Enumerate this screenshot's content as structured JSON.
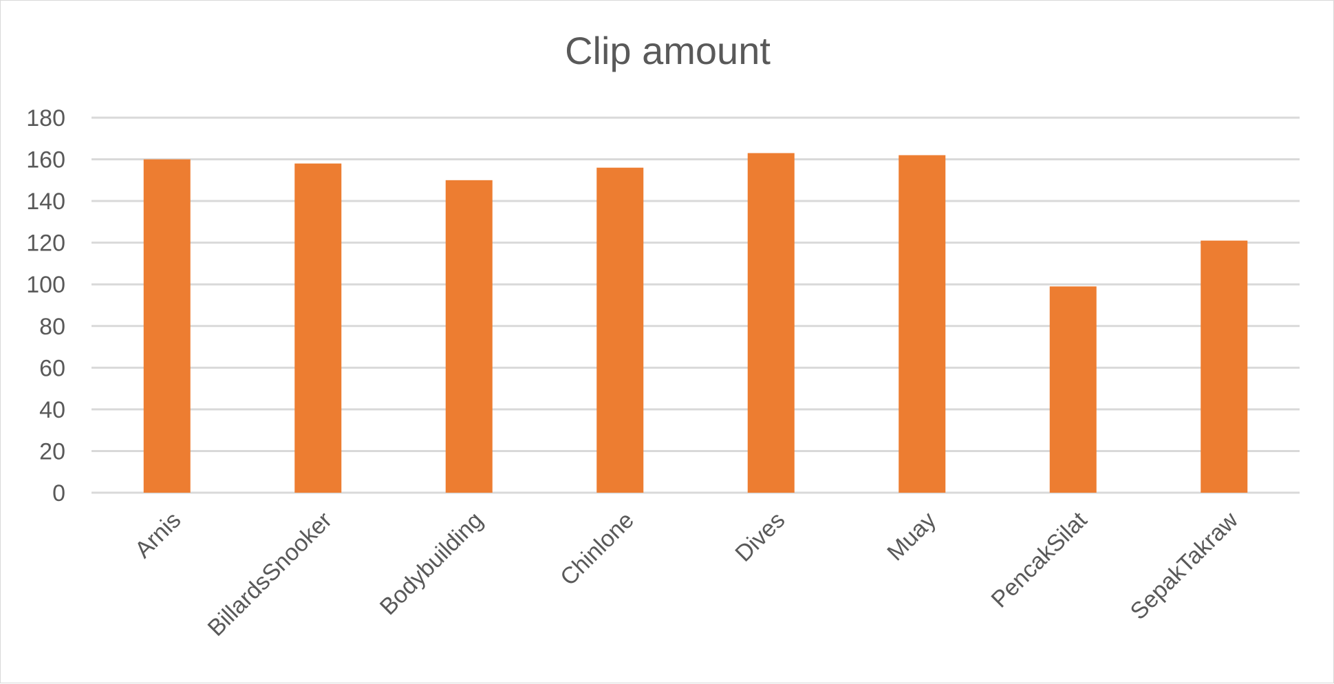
{
  "chart_data": {
    "type": "bar",
    "title": "Clip amount",
    "xlabel": "",
    "ylabel": "",
    "categories": [
      "Arnis",
      "BillardsSnooker",
      "Bodybuilding",
      "Chinlone",
      "Dives",
      "Muay",
      "PencakSilat",
      "SepakTakraw"
    ],
    "values": [
      160,
      158,
      150,
      156,
      163,
      162,
      99,
      121
    ],
    "ylim": [
      0,
      180
    ],
    "yticks": [
      0,
      20,
      40,
      60,
      80,
      100,
      120,
      140,
      160,
      180
    ],
    "grid": true,
    "legend": "none",
    "colors": {
      "bar": "#ed7d31",
      "grid": "#d9d9d9",
      "text": "#595959"
    }
  }
}
